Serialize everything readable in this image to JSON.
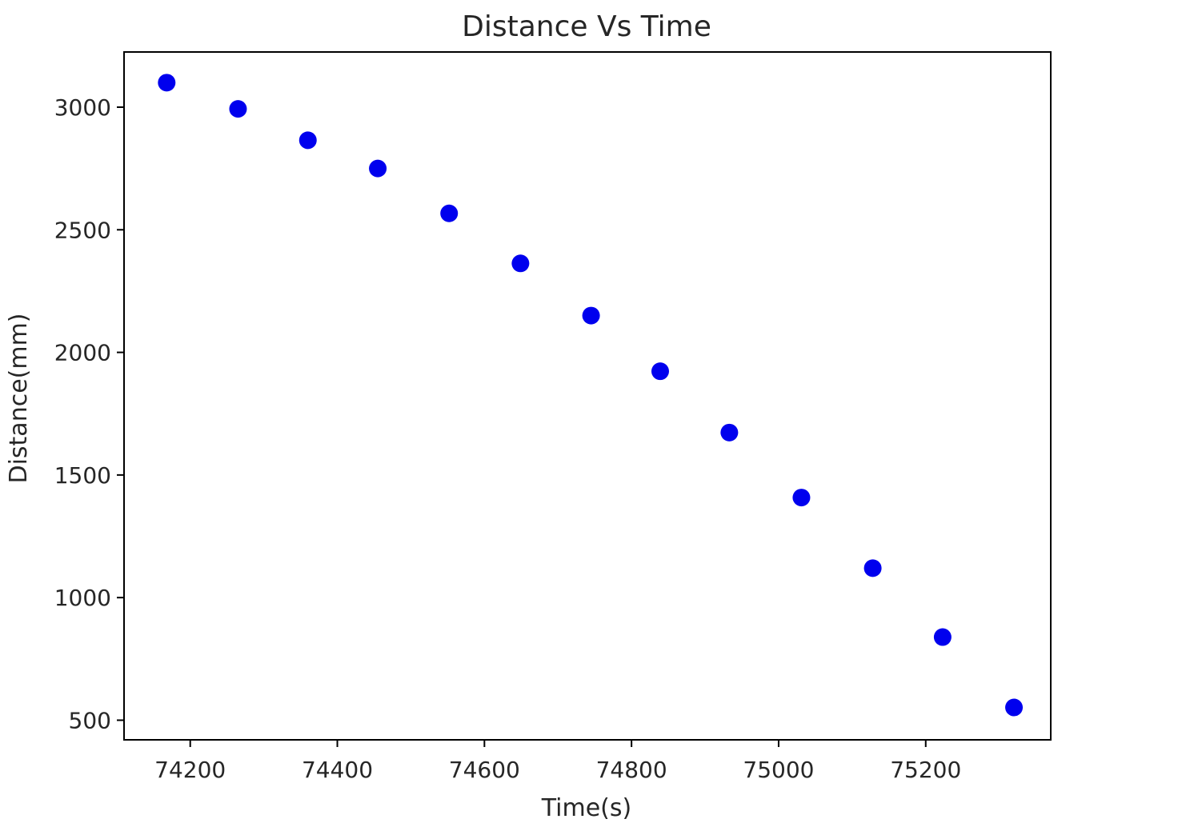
{
  "chart_data": {
    "type": "scatter",
    "title": "Distance Vs Time",
    "xlabel": "Time(s)",
    "ylabel": "Distance(mm)",
    "xlim": [
      74110,
      75370
    ],
    "ylim": [
      420,
      3225
    ],
    "xticks": [
      74200,
      74400,
      74600,
      74800,
      75000,
      75200
    ],
    "yticks": [
      500,
      1000,
      1500,
      2000,
      2500,
      3000
    ],
    "grid": false,
    "series": [
      {
        "color": "#0000ee",
        "points": [
          {
            "x": 74168,
            "y": 3100
          },
          {
            "x": 74265,
            "y": 2993
          },
          {
            "x": 74360,
            "y": 2865
          },
          {
            "x": 74455,
            "y": 2750
          },
          {
            "x": 74552,
            "y": 2567
          },
          {
            "x": 74649,
            "y": 2363
          },
          {
            "x": 74745,
            "y": 2150
          },
          {
            "x": 74839,
            "y": 1923
          },
          {
            "x": 74933,
            "y": 1673
          },
          {
            "x": 75031,
            "y": 1408
          },
          {
            "x": 75128,
            "y": 1120
          },
          {
            "x": 75223,
            "y": 839
          },
          {
            "x": 75320,
            "y": 552
          }
        ]
      }
    ]
  }
}
